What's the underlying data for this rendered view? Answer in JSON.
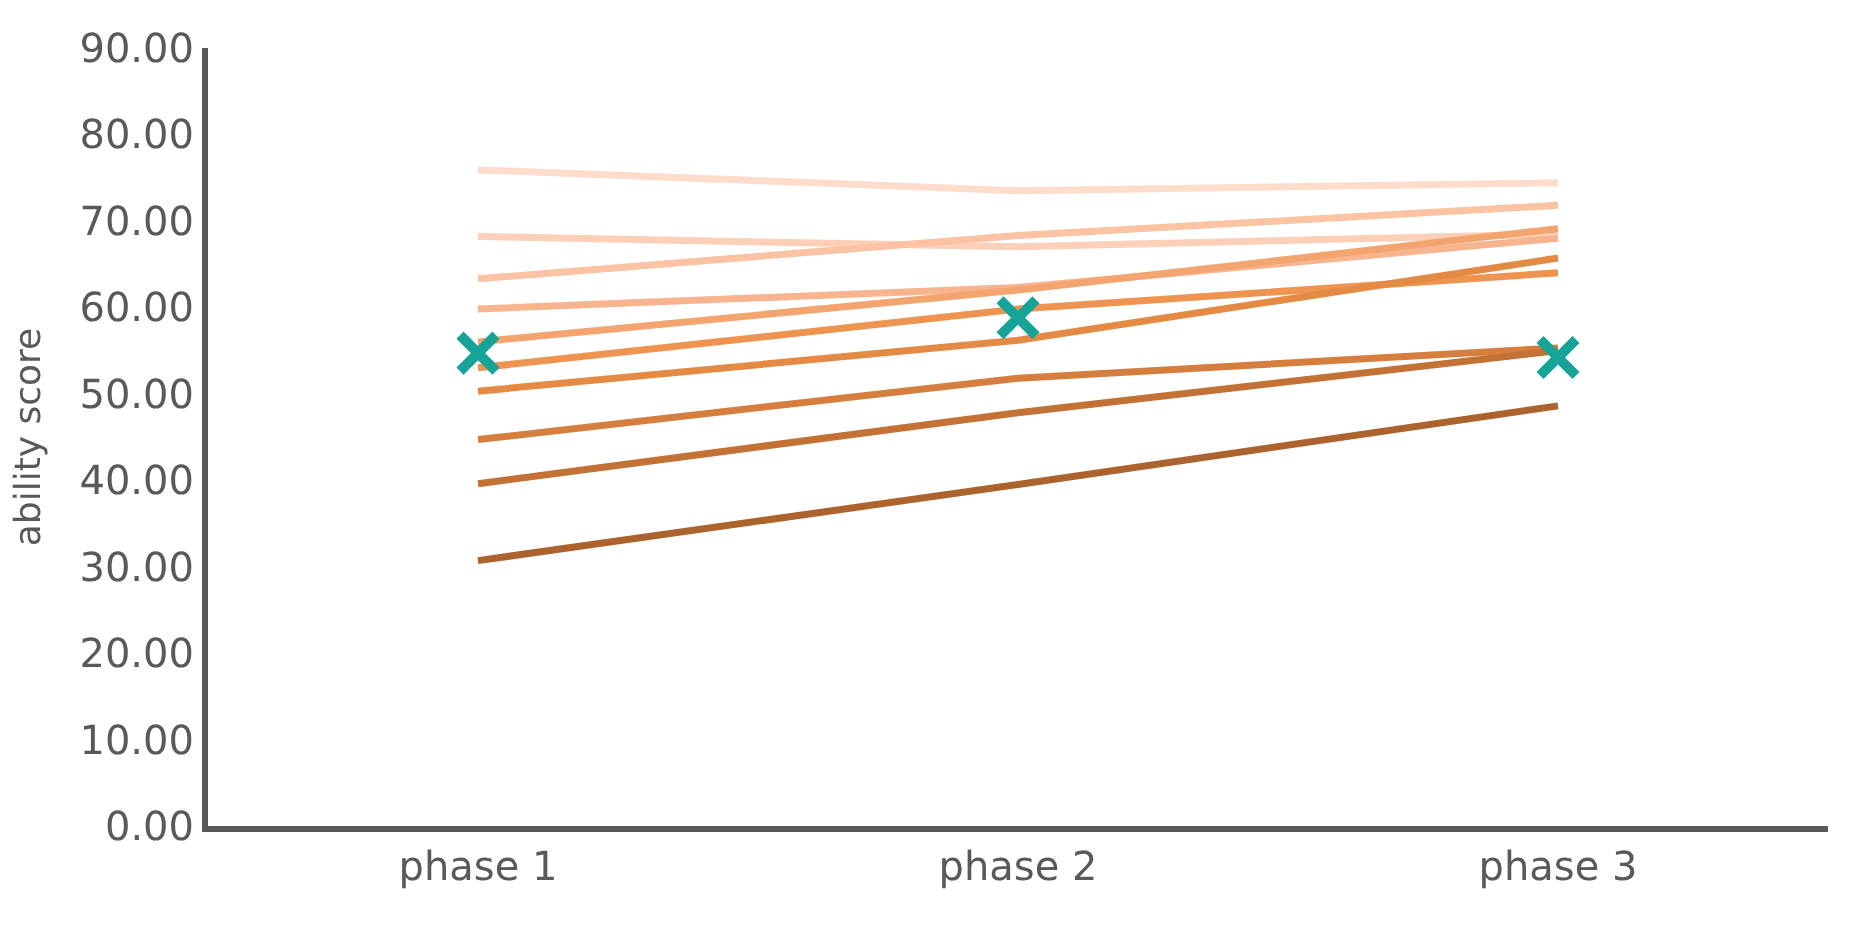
{
  "chart_data": {
    "type": "line",
    "ylabel": "ability score",
    "categories": [
      "phase 1",
      "phase 2",
      "phase 3"
    ],
    "ylim": [
      0,
      90
    ],
    "yticks": [
      {
        "value": 0,
        "label": "0.00"
      },
      {
        "value": 10,
        "label": "10.00"
      },
      {
        "value": 20,
        "label": "20.00"
      },
      {
        "value": 30,
        "label": "30.00"
      },
      {
        "value": 40,
        "label": "40.00"
      },
      {
        "value": 50,
        "label": "50.00"
      },
      {
        "value": 60,
        "label": "60.00"
      },
      {
        "value": 70,
        "label": "70.00"
      },
      {
        "value": 80,
        "label": "80.00"
      },
      {
        "value": 90,
        "label": "90.00"
      }
    ],
    "marker": "none",
    "line_style": "solid",
    "series": [
      {
        "color": "#fddccb",
        "values": [
          75.9,
          73.5,
          74.4
        ]
      },
      {
        "color": "#fccfb8",
        "values": [
          68.2,
          67.0,
          68.5
        ]
      },
      {
        "color": "#fbc2a4",
        "values": [
          63.3,
          68.3,
          71.8
        ]
      },
      {
        "color": "#f8b48e",
        "values": [
          59.8,
          62.3,
          68.0
        ]
      },
      {
        "color": "#f4a46f",
        "values": [
          56.0,
          62.0,
          69.1
        ]
      },
      {
        "color": "#ef9450",
        "values": [
          53.0,
          59.8,
          64.0
        ]
      },
      {
        "color": "#e58a45",
        "values": [
          50.3,
          56.2,
          65.7
        ]
      },
      {
        "color": "#d67e3e",
        "values": [
          44.7,
          51.8,
          55.3
        ]
      },
      {
        "color": "#c47135",
        "values": [
          39.6,
          47.8,
          55.0
        ]
      },
      {
        "color": "#ad632d",
        "values": [
          30.7,
          39.5,
          48.6
        ]
      },
      {
        "type": "scatter",
        "marker": "cross",
        "color": "#17a398",
        "values": [
          54.7,
          58.8,
          54.2
        ]
      }
    ]
  }
}
